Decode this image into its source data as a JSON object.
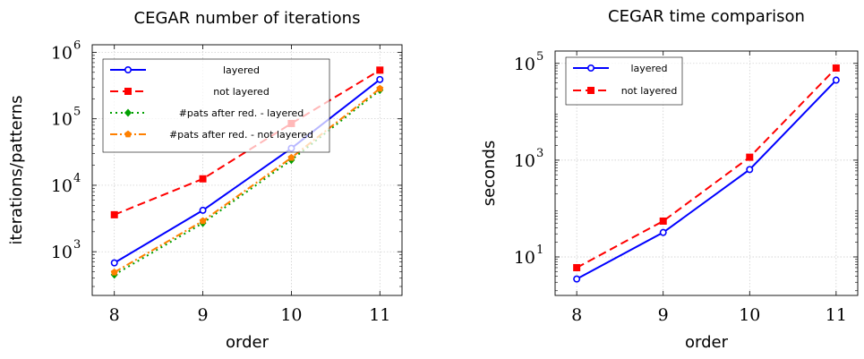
{
  "chart_data": [
    {
      "type": "line",
      "title": "CEGAR number of iterations",
      "xlabel": "order",
      "ylabel": "iterations/patterns",
      "yscale": "log",
      "x": [
        8,
        9,
        10,
        11
      ],
      "xlim": [
        7.75,
        11.25
      ],
      "ylim": [
        220,
        1300000
      ],
      "yticks": [
        {
          "base": "10",
          "exp": "3",
          "value": 1000
        },
        {
          "base": "10",
          "exp": "4",
          "value": 10000
        },
        {
          "base": "10",
          "exp": "5",
          "value": 100000
        },
        {
          "base": "10",
          "exp": "6",
          "value": 1000000
        }
      ],
      "grid": true,
      "legend_position": "top-left",
      "series": [
        {
          "name": "layered",
          "values": [
            680,
            4200,
            36000,
            390000
          ],
          "color": "#0000ff",
          "dash": "solid",
          "marker": "circle"
        },
        {
          "name": "not layered",
          "values": [
            3600,
            12500,
            85000,
            540000
          ],
          "color": "#ff0000",
          "dash": "dashed",
          "marker": "square"
        },
        {
          "name": "#pats after red. - layered",
          "values": [
            450,
            2700,
            24000,
            270000
          ],
          "color": "#00a000",
          "dash": "dotted",
          "marker": "diamond"
        },
        {
          "name": "#pats after red. - not layered",
          "values": [
            490,
            2900,
            26000,
            285000
          ],
          "color": "#ff8000",
          "dash": "dashdot",
          "marker": "pentagon"
        }
      ]
    },
    {
      "type": "line",
      "title": "CEGAR time comparison",
      "xlabel": "order",
      "ylabel": "seconds",
      "yscale": "log",
      "x": [
        8,
        9,
        10,
        11
      ],
      "xlim": [
        7.75,
        11.25
      ],
      "ylim": [
        1.6,
        180000
      ],
      "yticks": [
        {
          "base": "10",
          "exp": "1",
          "value": 10
        },
        {
          "base": "10",
          "exp": "3",
          "value": 1000
        },
        {
          "base": "10",
          "exp": "5",
          "value": 100000
        }
      ],
      "grid": true,
      "legend_position": "top-left",
      "series": [
        {
          "name": "layered",
          "values": [
            3.5,
            32,
            640,
            45000
          ],
          "color": "#0000ff",
          "dash": "solid",
          "marker": "circle"
        },
        {
          "name": "not layered",
          "values": [
            6,
            55,
            1150,
            80000
          ],
          "color": "#ff0000",
          "dash": "dashed",
          "marker": "square"
        }
      ]
    }
  ]
}
